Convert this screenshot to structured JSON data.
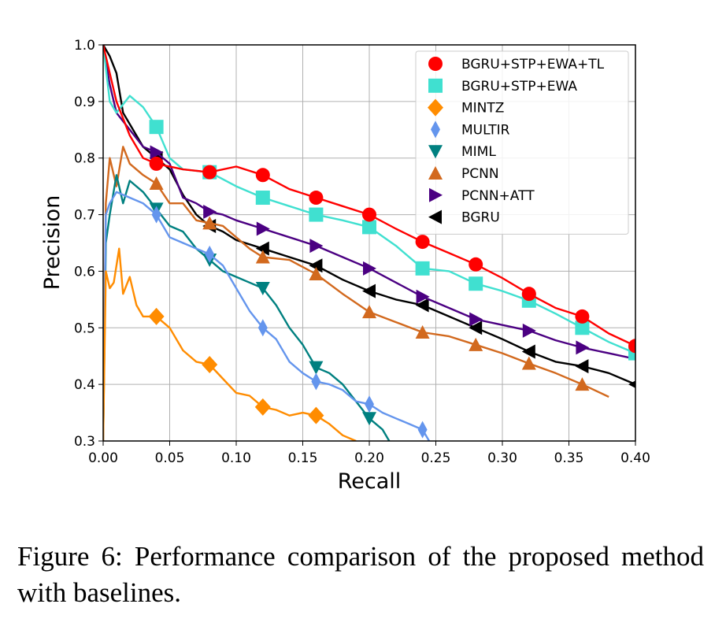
{
  "caption": "Figure 6:  Performance comparison of the proposed method with baselines.",
  "chart_data": {
    "type": "line",
    "title": "",
    "xlabel": "Recall",
    "ylabel": "Precision",
    "xlim": [
      0.0,
      0.4
    ],
    "ylim": [
      0.3,
      1.0
    ],
    "xticks": [
      "0.00",
      "0.05",
      "0.10",
      "0.15",
      "0.20",
      "0.25",
      "0.30",
      "0.35",
      "0.40"
    ],
    "yticks": [
      "0.3",
      "0.4",
      "0.5",
      "0.6",
      "0.7",
      "0.8",
      "0.9",
      "1.0"
    ],
    "grid": true,
    "legend_position": "top-right",
    "series": [
      {
        "name": "BGRU+STP+EWA+TL",
        "color": "#ff0000",
        "marker": "circle",
        "points": [
          [
            0.0,
            1.0
          ],
          [
            0.005,
            0.95
          ],
          [
            0.01,
            0.9
          ],
          [
            0.02,
            0.84
          ],
          [
            0.03,
            0.8
          ],
          [
            0.04,
            0.79
          ],
          [
            0.06,
            0.78
          ],
          [
            0.08,
            0.775
          ],
          [
            0.1,
            0.785
          ],
          [
            0.12,
            0.77
          ],
          [
            0.14,
            0.745
          ],
          [
            0.16,
            0.73
          ],
          [
            0.18,
            0.715
          ],
          [
            0.2,
            0.7
          ],
          [
            0.22,
            0.675
          ],
          [
            0.24,
            0.652
          ],
          [
            0.26,
            0.632
          ],
          [
            0.28,
            0.612
          ],
          [
            0.3,
            0.588
          ],
          [
            0.32,
            0.56
          ],
          [
            0.34,
            0.535
          ],
          [
            0.36,
            0.52
          ],
          [
            0.38,
            0.49
          ],
          [
            0.4,
            0.468
          ]
        ],
        "markers": [
          [
            0.04,
            0.79
          ],
          [
            0.08,
            0.775
          ],
          [
            0.12,
            0.77
          ],
          [
            0.16,
            0.73
          ],
          [
            0.2,
            0.7
          ],
          [
            0.24,
            0.652
          ],
          [
            0.28,
            0.612
          ],
          [
            0.32,
            0.56
          ],
          [
            0.36,
            0.52
          ],
          [
            0.4,
            0.468
          ]
        ]
      },
      {
        "name": "BGRU+STP+EWA",
        "color": "#40e0d0",
        "marker": "square",
        "points": [
          [
            0.0,
            1.0
          ],
          [
            0.005,
            0.9
          ],
          [
            0.01,
            0.88
          ],
          [
            0.02,
            0.91
          ],
          [
            0.03,
            0.89
          ],
          [
            0.04,
            0.855
          ],
          [
            0.05,
            0.8
          ],
          [
            0.06,
            0.78
          ],
          [
            0.08,
            0.775
          ],
          [
            0.1,
            0.75
          ],
          [
            0.12,
            0.73
          ],
          [
            0.14,
            0.715
          ],
          [
            0.16,
            0.7
          ],
          [
            0.18,
            0.69
          ],
          [
            0.2,
            0.678
          ],
          [
            0.22,
            0.645
          ],
          [
            0.24,
            0.605
          ],
          [
            0.26,
            0.6
          ],
          [
            0.28,
            0.578
          ],
          [
            0.3,
            0.565
          ],
          [
            0.32,
            0.548
          ],
          [
            0.34,
            0.525
          ],
          [
            0.36,
            0.5
          ],
          [
            0.38,
            0.475
          ],
          [
            0.4,
            0.455
          ]
        ],
        "markers": [
          [
            0.04,
            0.855
          ],
          [
            0.08,
            0.775
          ],
          [
            0.12,
            0.73
          ],
          [
            0.16,
            0.7
          ],
          [
            0.2,
            0.678
          ],
          [
            0.24,
            0.605
          ],
          [
            0.28,
            0.578
          ],
          [
            0.32,
            0.548
          ],
          [
            0.36,
            0.5
          ],
          [
            0.4,
            0.455
          ]
        ]
      },
      {
        "name": "MINTZ",
        "color": "#ff8c00",
        "marker": "diamond",
        "points": [
          [
            0.0,
            0.3
          ],
          [
            0.002,
            0.6
          ],
          [
            0.005,
            0.57
          ],
          [
            0.008,
            0.58
          ],
          [
            0.012,
            0.64
          ],
          [
            0.015,
            0.56
          ],
          [
            0.02,
            0.59
          ],
          [
            0.025,
            0.54
          ],
          [
            0.03,
            0.52
          ],
          [
            0.04,
            0.52
          ],
          [
            0.05,
            0.5
          ],
          [
            0.06,
            0.46
          ],
          [
            0.07,
            0.44
          ],
          [
            0.08,
            0.435
          ],
          [
            0.09,
            0.41
          ],
          [
            0.1,
            0.385
          ],
          [
            0.11,
            0.38
          ],
          [
            0.12,
            0.36
          ],
          [
            0.13,
            0.355
          ],
          [
            0.14,
            0.345
          ],
          [
            0.15,
            0.35
          ],
          [
            0.16,
            0.345
          ],
          [
            0.17,
            0.33
          ],
          [
            0.18,
            0.31
          ],
          [
            0.19,
            0.3
          ]
        ],
        "markers": [
          [
            0.04,
            0.52
          ],
          [
            0.08,
            0.435
          ],
          [
            0.12,
            0.36
          ],
          [
            0.16,
            0.345
          ]
        ]
      },
      {
        "name": "MULTIR",
        "color": "#6495ed",
        "marker": "thin-diamond",
        "points": [
          [
            0.0,
            0.3
          ],
          [
            0.002,
            0.7
          ],
          [
            0.005,
            0.72
          ],
          [
            0.01,
            0.74
          ],
          [
            0.02,
            0.73
          ],
          [
            0.03,
            0.72
          ],
          [
            0.04,
            0.7
          ],
          [
            0.05,
            0.66
          ],
          [
            0.06,
            0.65
          ],
          [
            0.07,
            0.64
          ],
          [
            0.08,
            0.63
          ],
          [
            0.09,
            0.61
          ],
          [
            0.1,
            0.57
          ],
          [
            0.11,
            0.53
          ],
          [
            0.12,
            0.5
          ],
          [
            0.13,
            0.48
          ],
          [
            0.14,
            0.44
          ],
          [
            0.15,
            0.42
          ],
          [
            0.16,
            0.405
          ],
          [
            0.17,
            0.4
          ],
          [
            0.18,
            0.39
          ],
          [
            0.19,
            0.37
          ],
          [
            0.2,
            0.365
          ],
          [
            0.21,
            0.35
          ],
          [
            0.22,
            0.34
          ],
          [
            0.23,
            0.33
          ],
          [
            0.24,
            0.32
          ],
          [
            0.245,
            0.3
          ]
        ],
        "markers": [
          [
            0.04,
            0.7
          ],
          [
            0.08,
            0.63
          ],
          [
            0.12,
            0.5
          ],
          [
            0.16,
            0.405
          ],
          [
            0.2,
            0.365
          ],
          [
            0.24,
            0.32
          ]
        ]
      },
      {
        "name": "MIML",
        "color": "#008080",
        "marker": "triangle-down",
        "points": [
          [
            0.0,
            0.3
          ],
          [
            0.002,
            0.65
          ],
          [
            0.005,
            0.7
          ],
          [
            0.01,
            0.77
          ],
          [
            0.015,
            0.72
          ],
          [
            0.02,
            0.76
          ],
          [
            0.03,
            0.74
          ],
          [
            0.04,
            0.71
          ],
          [
            0.05,
            0.68
          ],
          [
            0.06,
            0.67
          ],
          [
            0.07,
            0.64
          ],
          [
            0.08,
            0.62
          ],
          [
            0.09,
            0.6
          ],
          [
            0.1,
            0.59
          ],
          [
            0.11,
            0.58
          ],
          [
            0.12,
            0.57
          ],
          [
            0.13,
            0.54
          ],
          [
            0.14,
            0.5
          ],
          [
            0.15,
            0.47
          ],
          [
            0.16,
            0.43
          ],
          [
            0.17,
            0.42
          ],
          [
            0.18,
            0.4
          ],
          [
            0.19,
            0.37
          ],
          [
            0.2,
            0.34
          ],
          [
            0.21,
            0.32
          ],
          [
            0.215,
            0.3
          ]
        ],
        "markers": [
          [
            0.04,
            0.71
          ],
          [
            0.08,
            0.62
          ],
          [
            0.12,
            0.57
          ],
          [
            0.16,
            0.43
          ],
          [
            0.2,
            0.34
          ]
        ]
      },
      {
        "name": "PCNN",
        "color": "#d2691e",
        "marker": "triangle-up",
        "points": [
          [
            0.0,
            0.3
          ],
          [
            0.002,
            0.72
          ],
          [
            0.005,
            0.8
          ],
          [
            0.01,
            0.75
          ],
          [
            0.015,
            0.82
          ],
          [
            0.02,
            0.79
          ],
          [
            0.03,
            0.77
          ],
          [
            0.04,
            0.755
          ],
          [
            0.05,
            0.72
          ],
          [
            0.06,
            0.72
          ],
          [
            0.07,
            0.69
          ],
          [
            0.08,
            0.685
          ],
          [
            0.09,
            0.68
          ],
          [
            0.1,
            0.66
          ],
          [
            0.11,
            0.64
          ],
          [
            0.12,
            0.625
          ],
          [
            0.14,
            0.62
          ],
          [
            0.16,
            0.595
          ],
          [
            0.18,
            0.56
          ],
          [
            0.2,
            0.528
          ],
          [
            0.22,
            0.51
          ],
          [
            0.24,
            0.492
          ],
          [
            0.26,
            0.485
          ],
          [
            0.28,
            0.47
          ],
          [
            0.3,
            0.455
          ],
          [
            0.32,
            0.437
          ],
          [
            0.34,
            0.42
          ],
          [
            0.36,
            0.4
          ],
          [
            0.38,
            0.378
          ]
        ],
        "markers": [
          [
            0.04,
            0.755
          ],
          [
            0.08,
            0.685
          ],
          [
            0.12,
            0.625
          ],
          [
            0.16,
            0.595
          ],
          [
            0.2,
            0.528
          ],
          [
            0.24,
            0.492
          ],
          [
            0.28,
            0.47
          ],
          [
            0.32,
            0.437
          ],
          [
            0.36,
            0.4
          ]
        ]
      },
      {
        "name": "PCNN+ATT",
        "color": "#4b0082",
        "marker": "triangle-right",
        "points": [
          [
            0.0,
            1.0
          ],
          [
            0.005,
            0.93
          ],
          [
            0.01,
            0.88
          ],
          [
            0.02,
            0.85
          ],
          [
            0.03,
            0.82
          ],
          [
            0.04,
            0.81
          ],
          [
            0.05,
            0.79
          ],
          [
            0.06,
            0.73
          ],
          [
            0.07,
            0.72
          ],
          [
            0.08,
            0.705
          ],
          [
            0.09,
            0.7
          ],
          [
            0.1,
            0.69
          ],
          [
            0.12,
            0.675
          ],
          [
            0.14,
            0.66
          ],
          [
            0.16,
            0.645
          ],
          [
            0.18,
            0.625
          ],
          [
            0.2,
            0.605
          ],
          [
            0.22,
            0.58
          ],
          [
            0.24,
            0.555
          ],
          [
            0.26,
            0.535
          ],
          [
            0.28,
            0.515
          ],
          [
            0.3,
            0.505
          ],
          [
            0.32,
            0.495
          ],
          [
            0.34,
            0.478
          ],
          [
            0.36,
            0.465
          ],
          [
            0.38,
            0.455
          ],
          [
            0.4,
            0.445
          ]
        ],
        "markers": [
          [
            0.04,
            0.81
          ],
          [
            0.08,
            0.705
          ],
          [
            0.12,
            0.675
          ],
          [
            0.16,
            0.645
          ],
          [
            0.2,
            0.605
          ],
          [
            0.24,
            0.555
          ],
          [
            0.28,
            0.515
          ],
          [
            0.32,
            0.495
          ],
          [
            0.36,
            0.465
          ]
        ]
      },
      {
        "name": "BGRU",
        "color": "#000000",
        "marker": "triangle-left",
        "points": [
          [
            0.0,
            1.0
          ],
          [
            0.005,
            0.98
          ],
          [
            0.01,
            0.95
          ],
          [
            0.015,
            0.88
          ],
          [
            0.02,
            0.86
          ],
          [
            0.03,
            0.82
          ],
          [
            0.04,
            0.8
          ],
          [
            0.05,
            0.78
          ],
          [
            0.06,
            0.735
          ],
          [
            0.07,
            0.7
          ],
          [
            0.08,
            0.68
          ],
          [
            0.09,
            0.67
          ],
          [
            0.1,
            0.655
          ],
          [
            0.12,
            0.64
          ],
          [
            0.14,
            0.625
          ],
          [
            0.16,
            0.61
          ],
          [
            0.18,
            0.585
          ],
          [
            0.2,
            0.565
          ],
          [
            0.22,
            0.55
          ],
          [
            0.24,
            0.54
          ],
          [
            0.26,
            0.52
          ],
          [
            0.28,
            0.5
          ],
          [
            0.3,
            0.48
          ],
          [
            0.32,
            0.458
          ],
          [
            0.34,
            0.44
          ],
          [
            0.36,
            0.432
          ],
          [
            0.38,
            0.42
          ],
          [
            0.4,
            0.4
          ]
        ],
        "markers": [
          [
            0.04,
            0.8
          ],
          [
            0.08,
            0.68
          ],
          [
            0.12,
            0.64
          ],
          [
            0.16,
            0.61
          ],
          [
            0.2,
            0.565
          ],
          [
            0.24,
            0.54
          ],
          [
            0.28,
            0.5
          ],
          [
            0.32,
            0.458
          ],
          [
            0.36,
            0.432
          ],
          [
            0.4,
            0.4
          ]
        ]
      }
    ]
  }
}
